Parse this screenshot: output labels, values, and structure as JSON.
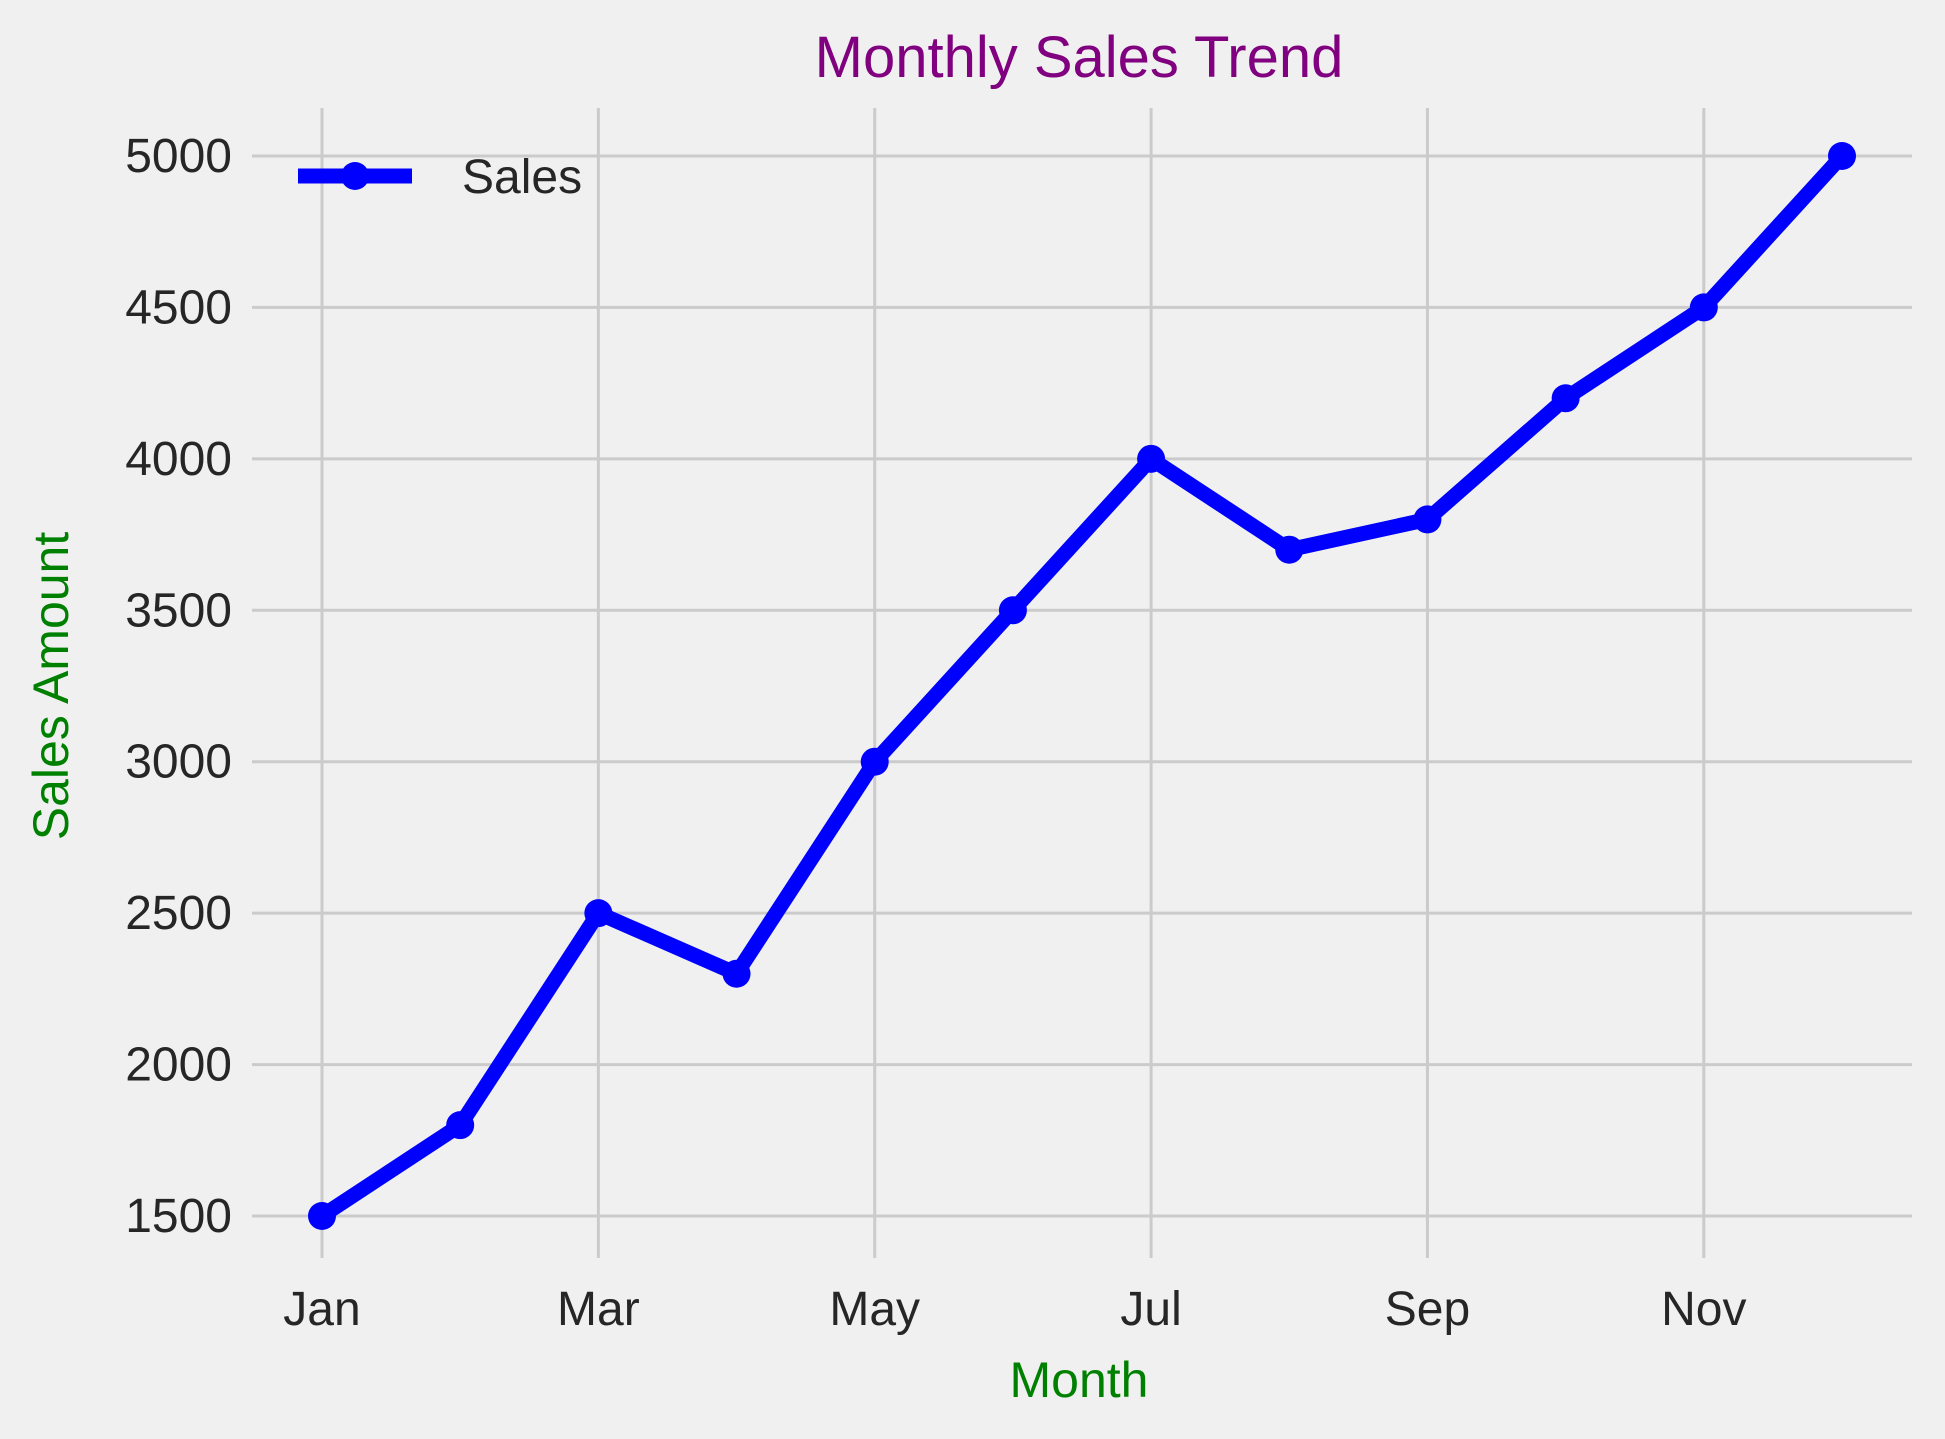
{
  "chart_data": {
    "type": "line",
    "title": "Monthly Sales Trend",
    "xlabel": "Month",
    "ylabel": "Sales Amount",
    "categories": [
      "Jan",
      "Feb",
      "Mar",
      "Apr",
      "May",
      "Jun",
      "Jul",
      "Aug",
      "Sep",
      "Oct",
      "Nov",
      "Dec"
    ],
    "x_tick_labels": [
      "Jan",
      "Mar",
      "May",
      "Jul",
      "Sep",
      "Nov"
    ],
    "y_ticks": [
      1500,
      2000,
      2500,
      3000,
      3500,
      4000,
      4500,
      5000
    ],
    "ylim": [
      1400,
      5150
    ],
    "grid": true,
    "legend_position": "upper-left",
    "series": [
      {
        "name": "Sales",
        "values": [
          1500,
          1800,
          2500,
          2300,
          3000,
          3500,
          4000,
          3700,
          3800,
          4200,
          4500,
          5000
        ],
        "color": "#0000ff",
        "marker": "circle"
      }
    ],
    "colors": {
      "background": "#f0f0f0",
      "grid": "#cbcbcb",
      "title": "#800080",
      "axis_labels": "#008000",
      "tick_labels": "#262626"
    }
  }
}
